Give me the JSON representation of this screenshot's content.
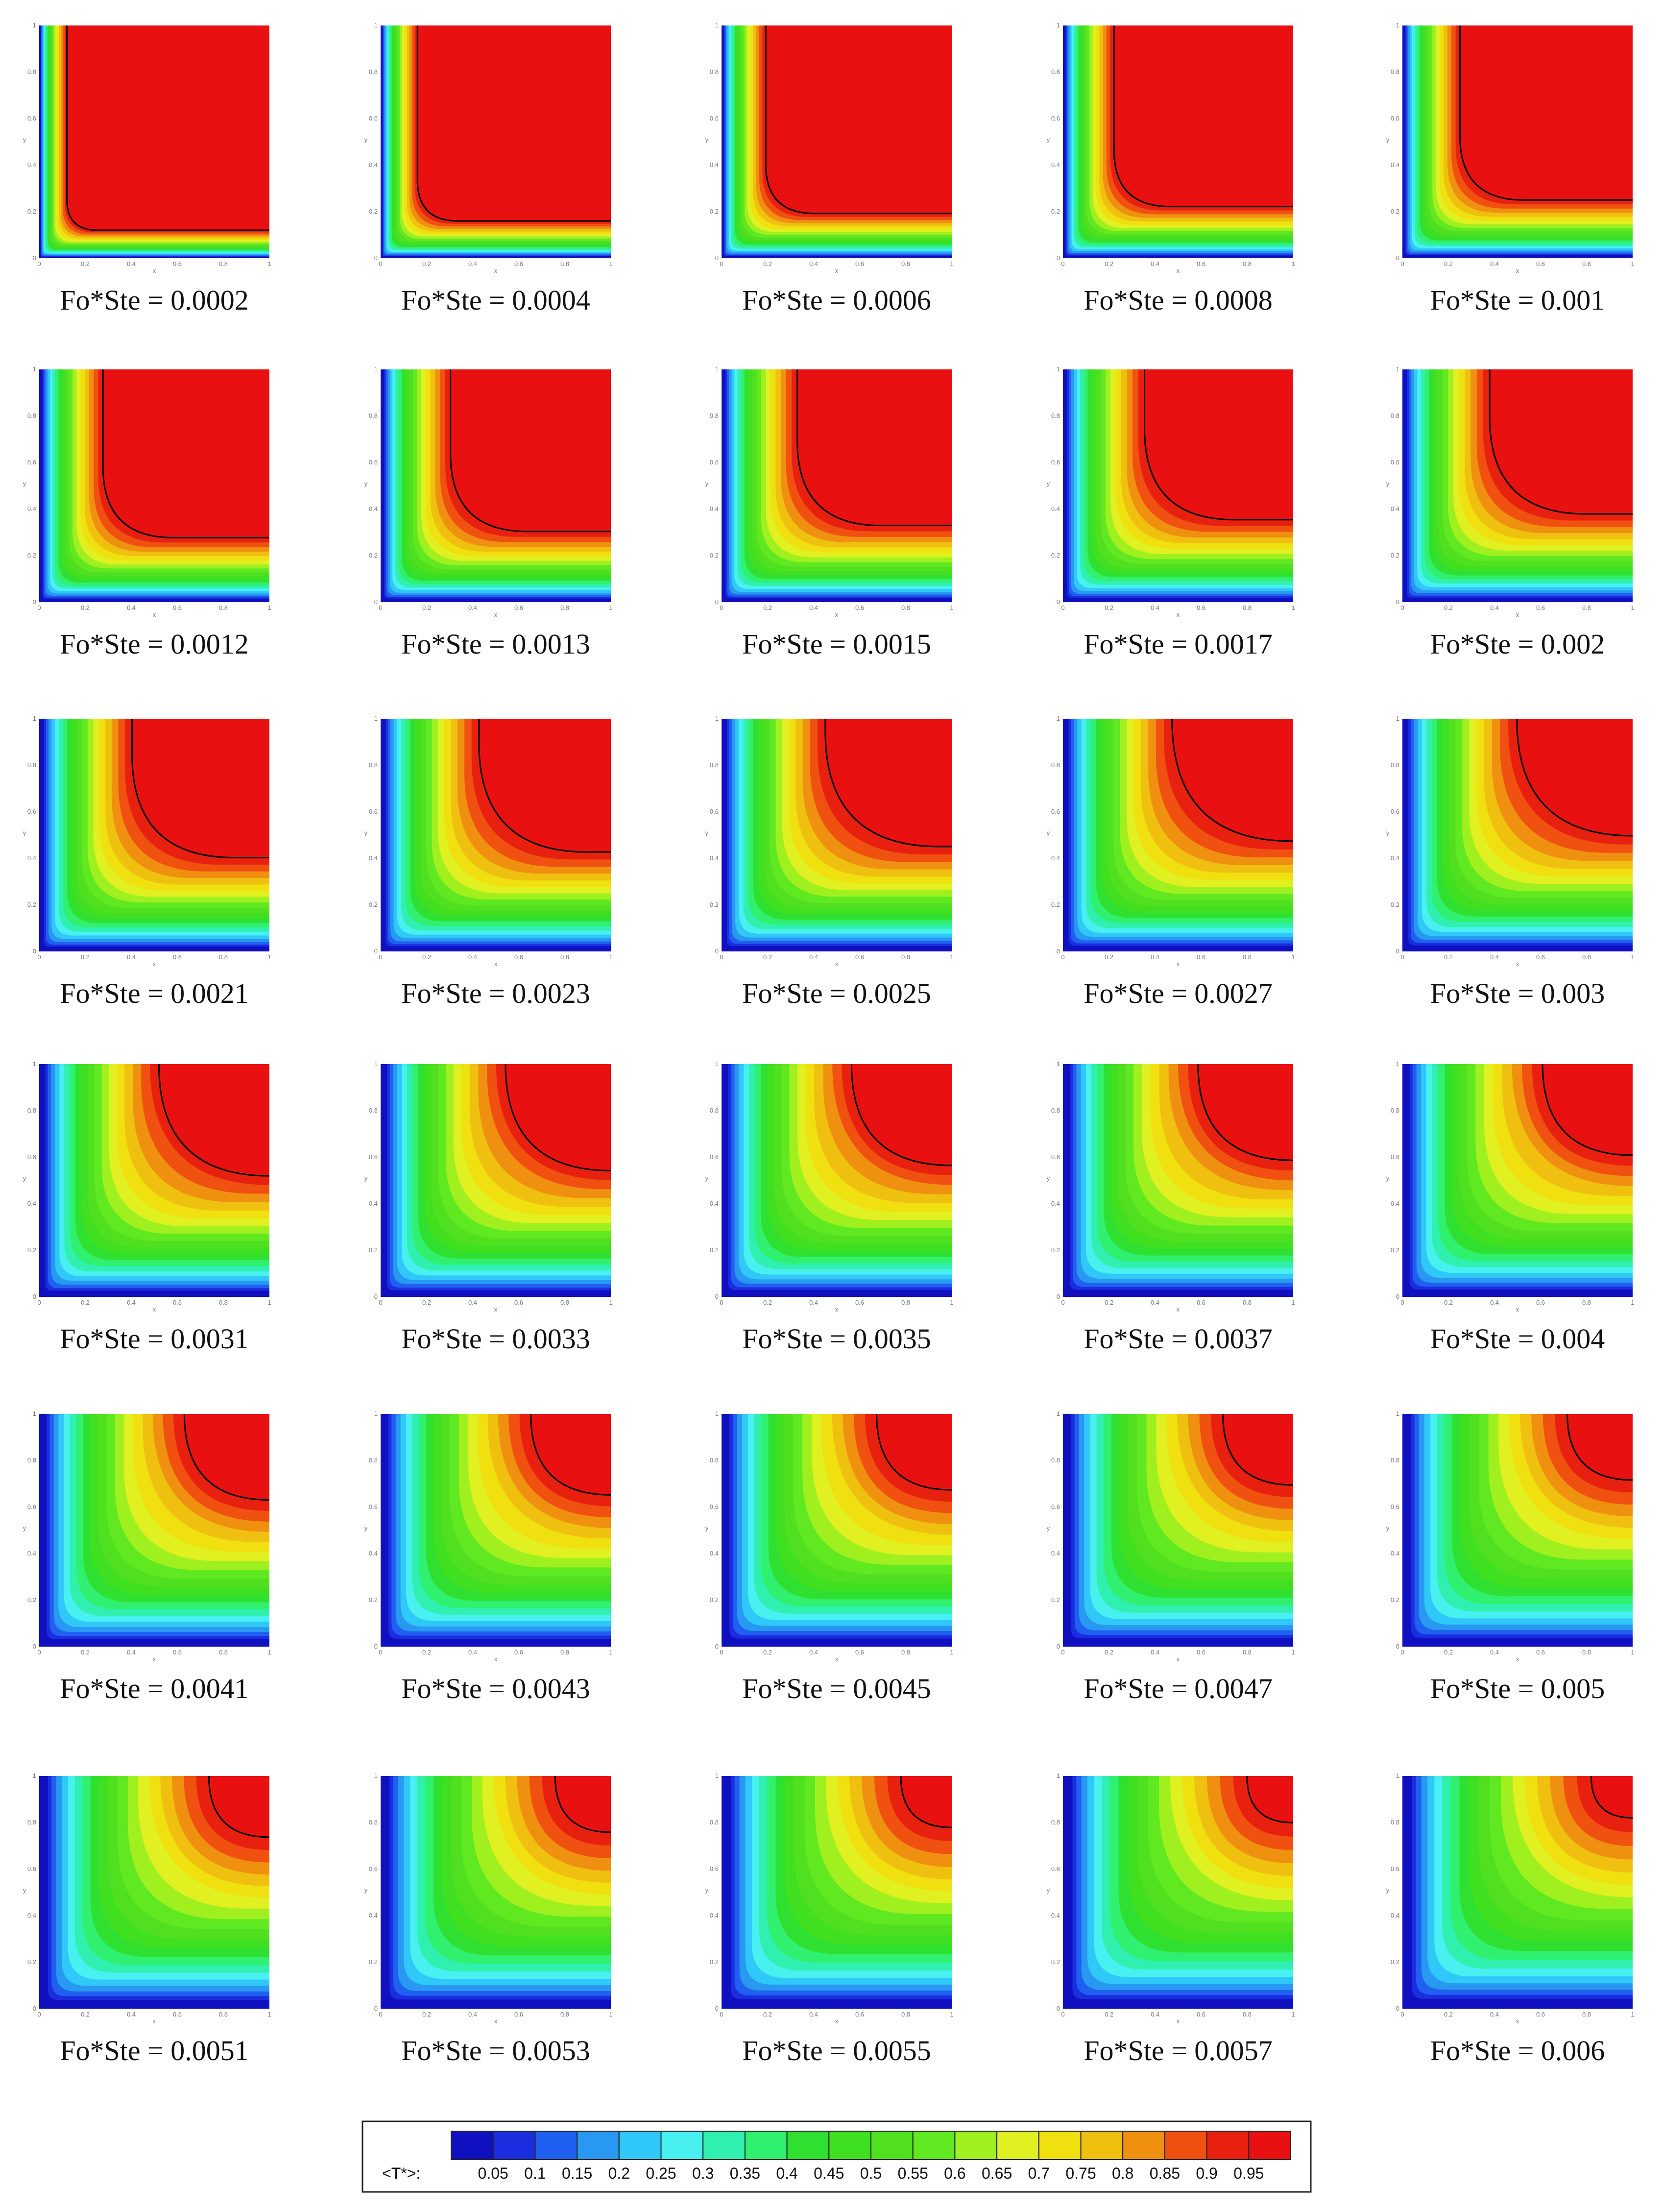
{
  "panels": [
    {
      "label": "Fo*Ste = 0.0002"
    },
    {
      "label": "Fo*Ste = 0.0004"
    },
    {
      "label": "Fo*Ste = 0.0006"
    },
    {
      "label": "Fo*Ste = 0.0008"
    },
    {
      "label": "Fo*Ste = 0.001"
    },
    {
      "label": "Fo*Ste = 0.0012"
    },
    {
      "label": "Fo*Ste = 0.0013"
    },
    {
      "label": "Fo*Ste = 0.0015"
    },
    {
      "label": "Fo*Ste = 0.0017"
    },
    {
      "label": "Fo*Ste = 0.002"
    },
    {
      "label": "Fo*Ste = 0.0021"
    },
    {
      "label": "Fo*Ste = 0.0023"
    },
    {
      "label": "Fo*Ste = 0.0025"
    },
    {
      "label": "Fo*Ste = 0.0027"
    },
    {
      "label": "Fo*Ste = 0.003"
    },
    {
      "label": "Fo*Ste = 0.0031"
    },
    {
      "label": "Fo*Ste = 0.0033"
    },
    {
      "label": "Fo*Ste = 0.0035"
    },
    {
      "label": "Fo*Ste = 0.0037"
    },
    {
      "label": "Fo*Ste = 0.004"
    },
    {
      "label": "Fo*Ste = 0.0041"
    },
    {
      "label": "Fo*Ste = 0.0043"
    },
    {
      "label": "Fo*Ste = 0.0045"
    },
    {
      "label": "Fo*Ste = 0.0047"
    },
    {
      "label": "Fo*Ste = 0.005"
    },
    {
      "label": "Fo*Ste = 0.0051"
    },
    {
      "label": "Fo*Ste = 0.0053"
    },
    {
      "label": "Fo*Ste = 0.0055"
    },
    {
      "label": "Fo*Ste = 0.0057"
    },
    {
      "label": "Fo*Ste = 0.006"
    }
  ],
  "axes": {
    "ticks": [
      "0",
      "0.2",
      "0.4",
      "0.6",
      "0.8",
      "1"
    ],
    "x_label": "x",
    "y_label": "y"
  },
  "colorbar": {
    "label": "<T*>:",
    "ticks": [
      "0.05",
      "0.1",
      "0.15",
      "0.2",
      "0.25",
      "0.3",
      "0.35",
      "0.4",
      "0.45",
      "0.5",
      "0.55",
      "0.6",
      "0.65",
      "0.7",
      "0.75",
      "0.8",
      "0.85",
      "0.9",
      "0.95"
    ],
    "colors": [
      "#1010c0",
      "#1a2ee0",
      "#2060f0",
      "#2898f0",
      "#30c8f8",
      "#48f0f0",
      "#30f0b0",
      "#30f070",
      "#30e030",
      "#40e020",
      "#50e020",
      "#60e820",
      "#a0f020",
      "#e0f020",
      "#f0e010",
      "#f0c010",
      "#f09010",
      "#f05010",
      "#e82010",
      "#e81010"
    ]
  }
}
